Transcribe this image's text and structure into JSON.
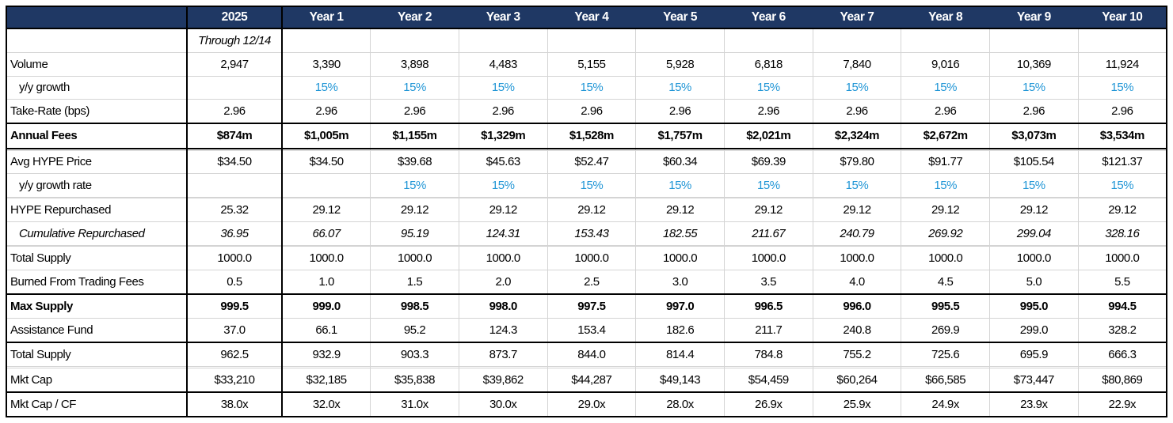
{
  "colors": {
    "header_bg": "#1f3864",
    "header_text": "#ffffff",
    "growth_blue": "#2196d6",
    "gridline": "#d4d4d4",
    "section_border": "#000000"
  },
  "table": {
    "columns": [
      "",
      "2025",
      "Year 1",
      "Year 2",
      "Year 3",
      "Year 4",
      "Year 5",
      "Year 6",
      "Year 7",
      "Year 8",
      "Year 9",
      "Year 10"
    ],
    "rows": [
      {
        "label": "",
        "italic": true,
        "values": [
          "Through 12/14",
          "",
          "",
          "",
          "",
          "",
          "",
          "",
          "",
          "",
          ""
        ]
      },
      {
        "label": "Volume",
        "values": [
          "2,947",
          "3,390",
          "3,898",
          "4,483",
          "5,155",
          "5,928",
          "6,818",
          "7,840",
          "9,016",
          "10,369",
          "11,924"
        ]
      },
      {
        "label": "y/y growth",
        "indent": true,
        "blue": true,
        "values": [
          "",
          "15%",
          "15%",
          "15%",
          "15%",
          "15%",
          "15%",
          "15%",
          "15%",
          "15%",
          "15%"
        ]
      },
      {
        "label": "Take-Rate (bps)",
        "values": [
          "2.96",
          "2.96",
          "2.96",
          "2.96",
          "2.96",
          "2.96",
          "2.96",
          "2.96",
          "2.96",
          "2.96",
          "2.96"
        ]
      },
      {
        "label": "Annual Fees",
        "bold": true,
        "thick_top": true,
        "thick_bottom": true,
        "values": [
          "$874m",
          "$1,005m",
          "$1,155m",
          "$1,329m",
          "$1,528m",
          "$1,757m",
          "$2,021m",
          "$2,324m",
          "$2,672m",
          "$3,073m",
          "$3,534m"
        ]
      },
      {
        "label": "",
        "blank": true,
        "values": [
          "",
          "",
          "",
          "",
          "",
          "",
          "",
          "",
          "",
          "",
          ""
        ]
      },
      {
        "label": "Avg HYPE Price",
        "values": [
          "$34.50",
          "$34.50",
          "$39.68",
          "$45.63",
          "$52.47",
          "$60.34",
          "$69.39",
          "$79.80",
          "$91.77",
          "$105.54",
          "$121.37"
        ]
      },
      {
        "label": "y/y growth rate",
        "indent": true,
        "blue": true,
        "values": [
          "",
          "",
          "15%",
          "15%",
          "15%",
          "15%",
          "15%",
          "15%",
          "15%",
          "15%",
          "15%"
        ]
      },
      {
        "label": "",
        "blank": true,
        "values": [
          "",
          "",
          "",
          "",
          "",
          "",
          "",
          "",
          "",
          "",
          ""
        ]
      },
      {
        "label": "HYPE Repurchased",
        "values": [
          "25.32",
          "29.12",
          "29.12",
          "29.12",
          "29.12",
          "29.12",
          "29.12",
          "29.12",
          "29.12",
          "29.12",
          "29.12"
        ]
      },
      {
        "label": "Cumulative Repurchased",
        "indent": true,
        "italic": true,
        "values": [
          "36.95",
          "66.07",
          "95.19",
          "124.31",
          "153.43",
          "182.55",
          "211.67",
          "240.79",
          "269.92",
          "299.04",
          "328.16"
        ]
      },
      {
        "label": "",
        "blank": true,
        "values": [
          "",
          "",
          "",
          "",
          "",
          "",
          "",
          "",
          "",
          "",
          ""
        ]
      },
      {
        "label": "Total Supply",
        "values": [
          "1000.0",
          "1000.0",
          "1000.0",
          "1000.0",
          "1000.0",
          "1000.0",
          "1000.0",
          "1000.0",
          "1000.0",
          "1000.0",
          "1000.0"
        ]
      },
      {
        "label": "Burned From Trading Fees",
        "values": [
          "0.5",
          "1.0",
          "1.5",
          "2.0",
          "2.5",
          "3.0",
          "3.5",
          "4.0",
          "4.5",
          "5.0",
          "5.5"
        ]
      },
      {
        "label": "Max Supply",
        "bold": true,
        "thick_top": true,
        "values": [
          "999.5",
          "999.0",
          "998.5",
          "998.0",
          "997.5",
          "997.0",
          "996.5",
          "996.0",
          "995.5",
          "995.0",
          "994.5"
        ]
      },
      {
        "label": "Assistance Fund",
        "values": [
          "37.0",
          "66.1",
          "95.2",
          "124.3",
          "153.4",
          "182.6",
          "211.7",
          "240.8",
          "269.9",
          "299.0",
          "328.2"
        ]
      },
      {
        "label": "Total Supply",
        "thick_top": true,
        "values": [
          "962.5",
          "932.9",
          "903.3",
          "873.7",
          "844.0",
          "814.4",
          "784.8",
          "755.2",
          "725.6",
          "695.9",
          "666.3"
        ]
      },
      {
        "label": "",
        "blank": true,
        "values": [
          "",
          "",
          "",
          "",
          "",
          "",
          "",
          "",
          "",
          "",
          ""
        ]
      },
      {
        "label": "Mkt Cap",
        "values": [
          "$33,210",
          "$32,185",
          "$35,838",
          "$39,862",
          "$44,287",
          "$49,143",
          "$54,459",
          "$60,264",
          "$66,585",
          "$73,447",
          "$80,869"
        ]
      },
      {
        "label": "Mkt Cap / CF",
        "thick_top": true,
        "thick_bottom": true,
        "values": [
          "38.0x",
          "32.0x",
          "31.0x",
          "30.0x",
          "29.0x",
          "28.0x",
          "26.9x",
          "25.9x",
          "24.9x",
          "23.9x",
          "22.9x"
        ]
      }
    ]
  }
}
